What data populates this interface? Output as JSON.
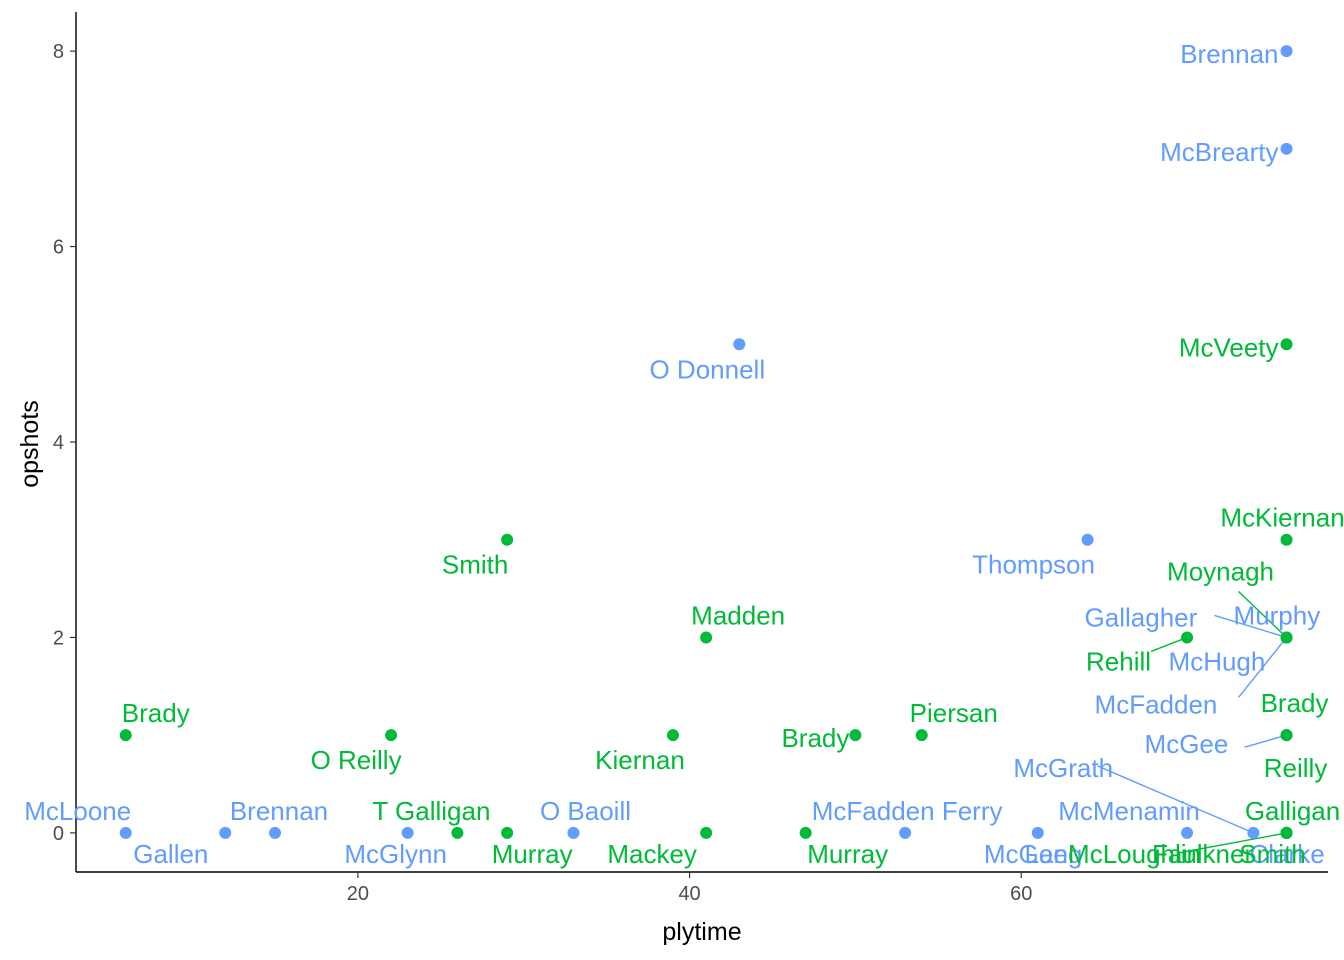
{
  "chart_data": {
    "type": "scatter",
    "title": "",
    "xlabel": "plytime",
    "ylabel": "opshots",
    "xlim": [
      3,
      78.5
    ],
    "ylim": [
      -0.4,
      8.4
    ],
    "xticks": [
      20,
      40,
      60
    ],
    "yticks": [
      0,
      2,
      4,
      6,
      8
    ],
    "grid": false,
    "legend": "none",
    "colors": {
      "blue": "#619CFF",
      "green": "#00BA38"
    },
    "points": [
      {
        "x": 6,
        "y": 0,
        "label": "McLoone",
        "color": "blue"
      },
      {
        "x": 12,
        "y": 0,
        "label": "Gallen",
        "color": "blue"
      },
      {
        "x": 15,
        "y": 0,
        "label": "Brennan",
        "color": "blue"
      },
      {
        "x": 23,
        "y": 0,
        "label": "McGlynn",
        "color": "blue"
      },
      {
        "x": 33,
        "y": 0,
        "label": "O Baoill",
        "color": "blue"
      },
      {
        "x": 43,
        "y": 5,
        "label": "O Donnell",
        "color": "blue"
      },
      {
        "x": 53,
        "y": 0,
        "label": "McFadden Ferry",
        "color": "blue"
      },
      {
        "x": 61,
        "y": 0,
        "label": "McGee",
        "color": "blue"
      },
      {
        "x": 64,
        "y": 3,
        "label": "Thompson",
        "color": "blue"
      },
      {
        "x": 70,
        "y": 0,
        "label": "McMenamin",
        "color": "blue"
      },
      {
        "x": 74,
        "y": 0,
        "label": "McGrath",
        "color": "blue"
      },
      {
        "x": 76,
        "y": 8,
        "label": "Brennan",
        "color": "blue"
      },
      {
        "x": 76,
        "y": 7,
        "label": "McBrearty",
        "color": "blue"
      },
      {
        "x": 76,
        "y": 2,
        "label": "Murphy",
        "color": "blue"
      },
      {
        "x": 76,
        "y": 2,
        "label": "Gallagher",
        "color": "blue"
      },
      {
        "x": 76,
        "y": 2,
        "label": "McHugh",
        "color": "blue"
      },
      {
        "x": 76,
        "y": 2,
        "label": "McFadden",
        "color": "blue"
      },
      {
        "x": 76,
        "y": 1,
        "label": "McGee",
        "color": "blue"
      },
      {
        "x": 76,
        "y": 0,
        "label": "Lang",
        "color": "blue"
      },
      {
        "x": 76,
        "y": 0,
        "label": "Clarke",
        "color": "blue"
      },
      {
        "x": 6,
        "y": 1,
        "label": "Brady",
        "color": "green"
      },
      {
        "x": 22,
        "y": 1,
        "label": "O Reilly",
        "color": "green"
      },
      {
        "x": 26,
        "y": 0,
        "label": "T Galligan",
        "color": "green"
      },
      {
        "x": 29,
        "y": 3,
        "label": "Smith",
        "color": "green"
      },
      {
        "x": 29,
        "y": 0,
        "label": "Murray",
        "color": "green"
      },
      {
        "x": 39,
        "y": 1,
        "label": "Kiernan",
        "color": "green"
      },
      {
        "x": 41,
        "y": 2,
        "label": "Madden",
        "color": "green"
      },
      {
        "x": 41,
        "y": 0,
        "label": "Mackey",
        "color": "green"
      },
      {
        "x": 47,
        "y": 0,
        "label": "Murray",
        "color": "green"
      },
      {
        "x": 50,
        "y": 1,
        "label": "Brady",
        "color": "green"
      },
      {
        "x": 54,
        "y": 1,
        "label": "Piersan",
        "color": "green"
      },
      {
        "x": 70,
        "y": 2,
        "label": "Rehill",
        "color": "green"
      },
      {
        "x": 76,
        "y": 5,
        "label": "McVeety",
        "color": "green"
      },
      {
        "x": 76,
        "y": 3,
        "label": "McKiernan",
        "color": "green"
      },
      {
        "x": 76,
        "y": 2,
        "label": "Moynagh",
        "color": "green"
      },
      {
        "x": 76,
        "y": 1,
        "label": "Brady",
        "color": "green"
      },
      {
        "x": 76,
        "y": 1,
        "label": "Reilly",
        "color": "green"
      },
      {
        "x": 76,
        "y": 0,
        "label": "Galligan",
        "color": "green"
      },
      {
        "x": 76,
        "y": 0,
        "label": "McLoughlin",
        "color": "green"
      },
      {
        "x": 76,
        "y": 0,
        "label": "Faulkner",
        "color": "green"
      },
      {
        "x": 76,
        "y": 0,
        "label": "Smith",
        "color": "green"
      }
    ]
  }
}
